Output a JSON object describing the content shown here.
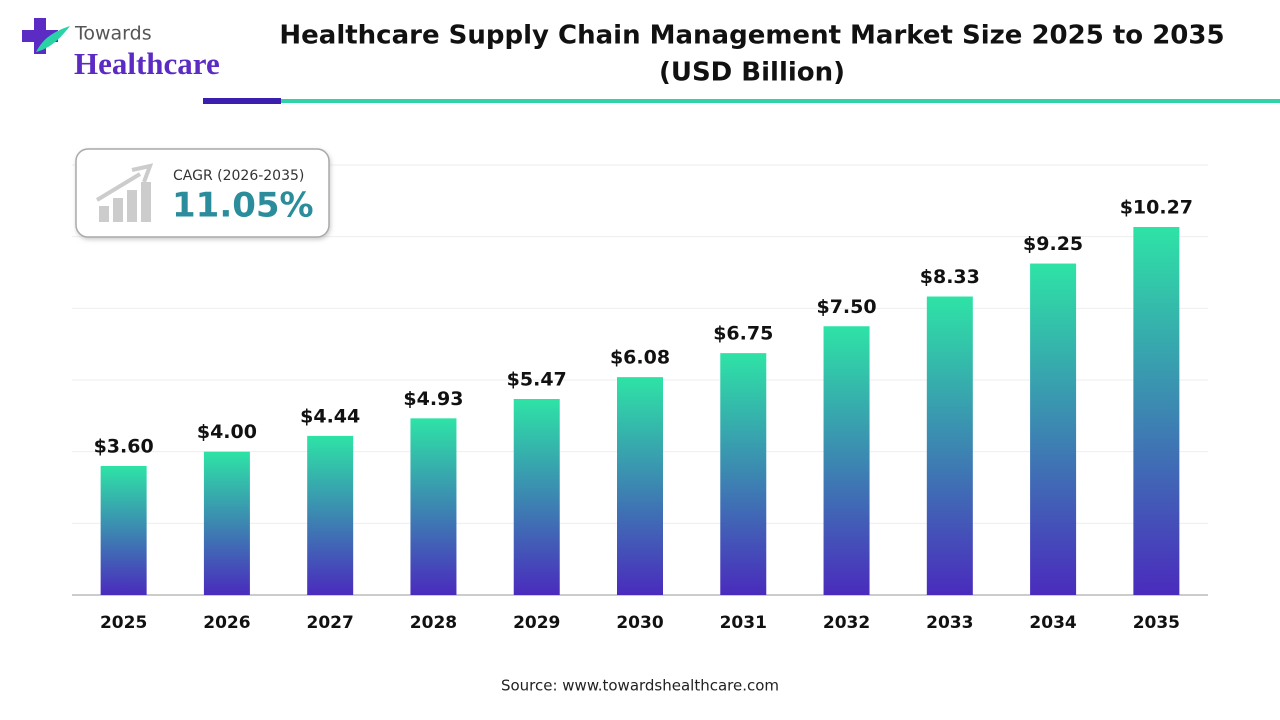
{
  "logo": {
    "top": "Towards",
    "bottom": "Healthcare"
  },
  "cagr": {
    "label": "CAGR (2026-2035)",
    "value": "11.05%"
  },
  "source": "Source: www.towardshealthcare.com",
  "chart_data": {
    "type": "bar",
    "title_lines": [
      "Healthcare Supply Chain Management Market Size 2025 to 2035",
      "(USD Billion)"
    ],
    "categories": [
      "2025",
      "2026",
      "2027",
      "2028",
      "2029",
      "2030",
      "2031",
      "2032",
      "2033",
      "2034",
      "2035"
    ],
    "values": [
      3.6,
      4.0,
      4.44,
      4.93,
      5.47,
      6.08,
      6.75,
      7.5,
      8.33,
      9.25,
      10.27
    ],
    "value_labels": [
      "$3.60",
      "$4.00",
      "$4.44",
      "$4.93",
      "$5.47",
      "$6.08",
      "$6.75",
      "$7.50",
      "$8.33",
      "$9.25",
      "$10.27"
    ],
    "colors": [
      "#2ee3a6",
      "#4a2bbd"
    ],
    "ylim": [
      0,
      12
    ],
    "yticks": [
      0,
      2,
      4,
      6,
      8,
      10,
      12
    ],
    "grid": true
  }
}
